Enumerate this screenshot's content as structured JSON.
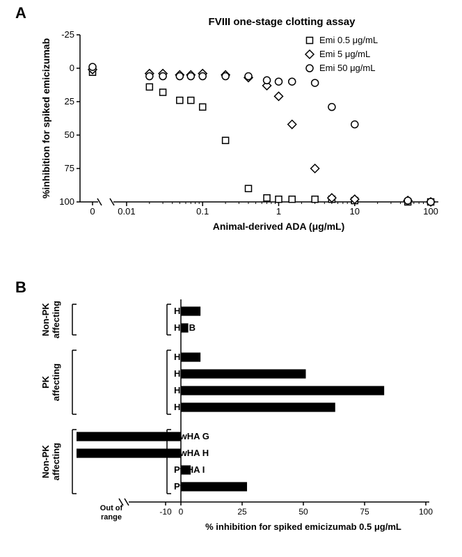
{
  "panelA": {
    "label": "A",
    "type": "scatter",
    "title": "FVIII one-stage clotting assay",
    "title_fontsize": 15,
    "xlabel": "Animal-derived ADA (μg/mL)",
    "ylabel": "%inhibition for spiked emicizumab",
    "label_fontsize": 14,
    "tick_fontsize": 13,
    "background_color": "#ffffff",
    "axis_color": "#000000",
    "marker_size": 9,
    "marker_stroke": "#000000",
    "marker_fill": "#ffffff",
    "xscale": "log",
    "xlim_log": [
      -2.1,
      2.1
    ],
    "ylim": [
      -25,
      100
    ],
    "yticks": [
      -25,
      0,
      25,
      50,
      75,
      100
    ],
    "xticks_major": [
      0.01,
      0.1,
      1,
      10,
      100
    ],
    "xticks_major_labels": [
      "0.01",
      "0.1",
      "1",
      "10",
      "100"
    ],
    "zero_break": true,
    "legend": [
      {
        "label": "Emi 0.5 μg/mL",
        "marker": "square"
      },
      {
        "label": "Emi 5 μg/mL",
        "marker": "diamond"
      },
      {
        "label": "Emi 50 μg/mL",
        "marker": "circle"
      }
    ],
    "series": [
      {
        "name": "Emi 0.5",
        "marker": "square",
        "points_zero": [
          {
            "y": 3
          }
        ],
        "points": [
          {
            "x": 0.02,
            "y": 14
          },
          {
            "x": 0.03,
            "y": 18
          },
          {
            "x": 0.05,
            "y": 24
          },
          {
            "x": 0.07,
            "y": 24
          },
          {
            "x": 0.1,
            "y": 29
          },
          {
            "x": 0.2,
            "y": 54
          },
          {
            "x": 0.4,
            "y": 90
          },
          {
            "x": 0.7,
            "y": 97
          },
          {
            "x": 1.0,
            "y": 98
          },
          {
            "x": 1.5,
            "y": 98
          },
          {
            "x": 3.0,
            "y": 98
          },
          {
            "x": 5.0,
            "y": 98
          },
          {
            "x": 10,
            "y": 99
          },
          {
            "x": 50,
            "y": 100
          },
          {
            "x": 100,
            "y": 100
          }
        ]
      },
      {
        "name": "Emi 5",
        "marker": "diamond",
        "points_zero": [
          {
            "y": 1
          }
        ],
        "points": [
          {
            "x": 0.02,
            "y": 4
          },
          {
            "x": 0.03,
            "y": 4
          },
          {
            "x": 0.05,
            "y": 5
          },
          {
            "x": 0.07,
            "y": 5
          },
          {
            "x": 0.1,
            "y": 4
          },
          {
            "x": 0.2,
            "y": 5
          },
          {
            "x": 0.4,
            "y": 7
          },
          {
            "x": 0.7,
            "y": 13
          },
          {
            "x": 1.0,
            "y": 21
          },
          {
            "x": 1.5,
            "y": 42
          },
          {
            "x": 3.0,
            "y": 75
          },
          {
            "x": 5.0,
            "y": 97
          },
          {
            "x": 10,
            "y": 98
          },
          {
            "x": 50,
            "y": 99
          },
          {
            "x": 100,
            "y": 100
          }
        ]
      },
      {
        "name": "Emi 50",
        "marker": "circle",
        "points_zero": [
          {
            "y": -1
          }
        ],
        "points": [
          {
            "x": 0.02,
            "y": 6
          },
          {
            "x": 0.03,
            "y": 6
          },
          {
            "x": 0.05,
            "y": 6
          },
          {
            "x": 0.07,
            "y": 6
          },
          {
            "x": 0.1,
            "y": 6
          },
          {
            "x": 0.2,
            "y": 6
          },
          {
            "x": 0.4,
            "y": 6
          },
          {
            "x": 0.7,
            "y": 9
          },
          {
            "x": 1.0,
            "y": 10
          },
          {
            "x": 1.5,
            "y": 10
          },
          {
            "x": 3.0,
            "y": 11
          },
          {
            "x": 5.0,
            "y": 29
          },
          {
            "x": 10,
            "y": 42
          },
          {
            "x": 50,
            "y": 99
          },
          {
            "x": 100,
            "y": 100
          }
        ]
      }
    ]
  },
  "panelB": {
    "label": "B",
    "type": "bar-horizontal",
    "xlabel": "% inhibition for spiked emicizumab 0.5 μg/mL",
    "label_fontsize": 13,
    "tick_fontsize": 12,
    "bar_color": "#000000",
    "axis_color": "#000000",
    "background_color": "#ffffff",
    "xlim": [
      -20,
      100
    ],
    "out_of_range_label": "Out of\nrange",
    "xticks": [
      -10,
      0,
      25,
      50,
      75,
      100
    ],
    "xtick_labels": [
      "-10",
      "0",
      "25",
      "50",
      "75",
      "100"
    ],
    "groups": [
      {
        "name": "Non-PK\naffecting",
        "items": [
          {
            "label": "HV A",
            "value": 8
          },
          {
            "label": "HV B",
            "value": 3
          }
        ]
      },
      {
        "name": "PK\naffecting",
        "items": [
          {
            "label": "HV C",
            "value": 8
          },
          {
            "label": "HV D",
            "value": 51
          },
          {
            "label": "HV E",
            "value": 83
          },
          {
            "label": "HV F",
            "value": 63
          }
        ]
      },
      {
        "name": "Non-PK\naffecting",
        "items": [
          {
            "label": "PwHA G",
            "value": "out_of_range"
          },
          {
            "label": "PwHA H",
            "value": "out_of_range"
          },
          {
            "label": "PwHA I",
            "value": 4
          },
          {
            "label": "PwHA J",
            "value": 27
          }
        ]
      }
    ],
    "bar_height_ratio": 0.55,
    "row_spacing": 24
  }
}
